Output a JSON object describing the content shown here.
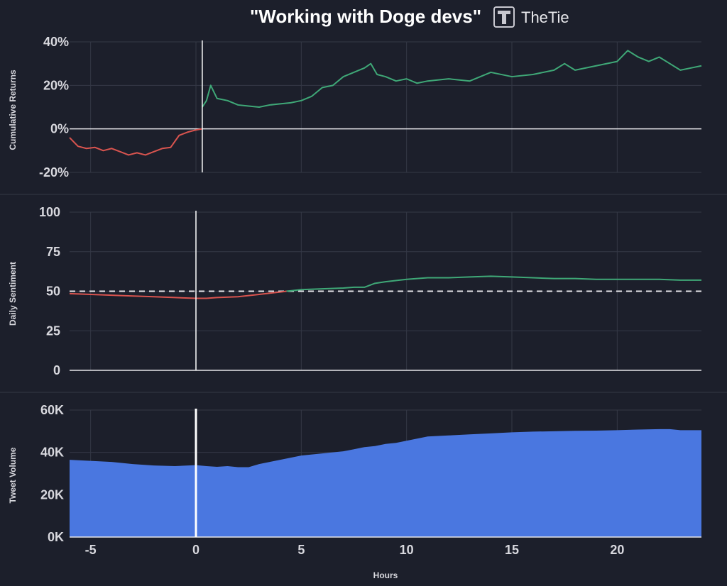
{
  "header": {
    "title": "\"Working with Doge devs\"",
    "brand": "TheTie"
  },
  "colors": {
    "background": "#1c1f2b",
    "grid": "#343846",
    "axis_line": "#e6e6ea",
    "negative": "#d9544f",
    "positive": "#3fa877",
    "volume_fill": "#4a77e0",
    "event_line": "#ffffff"
  },
  "chart_data": [
    {
      "type": "line",
      "ylabel": "Cumulative Returns",
      "ylim": [
        -20,
        40
      ],
      "yticks": [
        -20,
        0,
        20,
        40
      ],
      "ytick_labels": [
        "-20%",
        "0%",
        "20%",
        "40%"
      ],
      "xlim": [
        -6,
        24
      ],
      "event_x": 0.3,
      "baseline": 0,
      "series": [
        {
          "x": [
            -6,
            -5.6,
            -5.2,
            -4.8,
            -4.4,
            -4,
            -3.6,
            -3.2,
            -2.8,
            -2.4,
            -2,
            -1.6,
            -1.2,
            -0.8,
            -0.4,
            0,
            0.3
          ],
          "y": [
            -4,
            -8,
            -9,
            -8.5,
            -10,
            -9,
            -10.5,
            -12,
            -11,
            -12,
            -10.5,
            -9,
            -8.5,
            -3,
            -1.5,
            -0.5,
            0
          ]
        },
        {
          "x": [
            0.3,
            0.5,
            0.7,
            1,
            1.5,
            2,
            2.5,
            3,
            3.5,
            4,
            4.5,
            5,
            5.5,
            6,
            6.5,
            7,
            7.5,
            8,
            8.3,
            8.6,
            9,
            9.5,
            10,
            10.5,
            11,
            12,
            13,
            13.5,
            14,
            15,
            16,
            17,
            17.5,
            18,
            19,
            20,
            20.5,
            21,
            21.5,
            22,
            22.5,
            23,
            23.5,
            24
          ],
          "y": [
            10,
            13,
            20,
            14,
            13,
            11,
            10.5,
            10,
            11,
            11.5,
            12,
            13,
            15,
            19,
            20,
            24,
            26,
            28,
            30,
            25,
            24,
            22,
            23,
            21,
            22,
            23,
            22,
            24,
            26,
            24,
            25,
            27,
            30,
            27,
            29,
            31,
            36,
            33,
            31,
            33,
            30,
            27,
            28,
            29
          ]
        }
      ]
    },
    {
      "type": "line",
      "ylabel": "Daily Sentiment",
      "ylim": [
        0,
        100
      ],
      "yticks": [
        0,
        25,
        50,
        75,
        100
      ],
      "ytick_labels": [
        "0",
        "25",
        "50",
        "75",
        "100"
      ],
      "xlim": [
        -6,
        24
      ],
      "event_x": 0,
      "reference_line": 50,
      "series": [
        {
          "x": [
            -6,
            -5,
            -4,
            -3,
            -2,
            -1,
            0,
            0.5,
            1,
            2,
            3,
            4,
            4.3
          ],
          "y": [
            48.5,
            48,
            47.5,
            47,
            46.5,
            46,
            45.5,
            45.5,
            46,
            46.5,
            48,
            49.5,
            50
          ]
        },
        {
          "x": [
            4.3,
            5,
            6,
            7,
            7.5,
            8,
            8.5,
            9,
            10,
            11,
            12,
            13,
            14,
            15,
            16,
            17,
            18,
            19,
            20,
            21,
            22,
            23,
            24
          ],
          "y": [
            50,
            51,
            51.5,
            52,
            52.5,
            52.5,
            55,
            56,
            57.5,
            58.5,
            58.5,
            59,
            59.5,
            59,
            58.5,
            58,
            58,
            57.5,
            57.5,
            57.5,
            57.5,
            57,
            57
          ]
        }
      ]
    },
    {
      "type": "area",
      "ylabel": "Tweet Volume",
      "xlabel": "Hours",
      "ylim": [
        0,
        60000
      ],
      "yticks": [
        0,
        20000,
        40000,
        60000
      ],
      "ytick_labels": [
        "0K",
        "20K",
        "40K",
        "60K"
      ],
      "xlim": [
        -6,
        24
      ],
      "xticks": [
        -5,
        0,
        5,
        10,
        15,
        20
      ],
      "xtick_labels": [
        "-5",
        "0",
        "5",
        "10",
        "15",
        "20"
      ],
      "event_x": 0,
      "series": [
        {
          "x": [
            -6,
            -5,
            -4,
            -3,
            -2,
            -1,
            0,
            0.5,
            1,
            1.5,
            2,
            2.5,
            3,
            3.5,
            4,
            4.5,
            5,
            5.5,
            6,
            6.5,
            7,
            7.5,
            8,
            8.5,
            9,
            9.5,
            10,
            10.5,
            11,
            12,
            13,
            14,
            15,
            16,
            17,
            18,
            19,
            20,
            21,
            22,
            22.5,
            23,
            24
          ],
          "y": [
            36500,
            36000,
            35500,
            34500,
            33800,
            33500,
            34000,
            33500,
            33200,
            33500,
            33000,
            33000,
            34500,
            35500,
            36500,
            37500,
            38500,
            39000,
            39500,
            40000,
            40500,
            41500,
            42500,
            43000,
            44000,
            44500,
            45500,
            46500,
            47500,
            48000,
            48500,
            49000,
            49500,
            49800,
            50000,
            50200,
            50300,
            50500,
            50800,
            51000,
            51000,
            50500,
            50500
          ]
        }
      ]
    }
  ]
}
